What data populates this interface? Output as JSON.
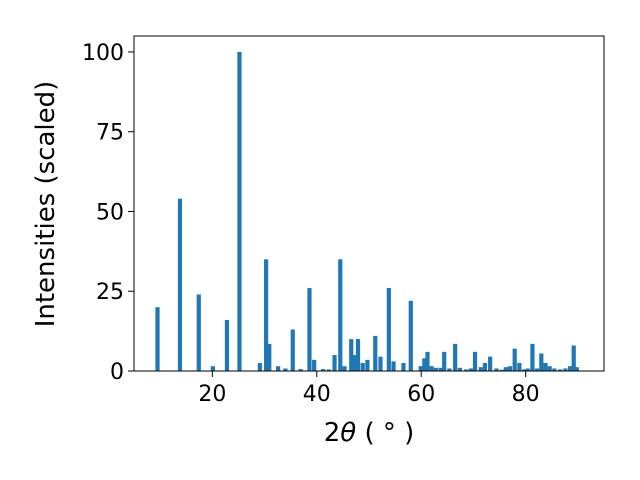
{
  "chart_data": {
    "type": "bar",
    "xlabel_prefix": "2",
    "xlabel_symbol": "θ",
    "xlabel_unit": " ( ° )",
    "ylabel": "Intensities (scaled)",
    "xlim": [
      5,
      95
    ],
    "ylim": [
      0,
      105
    ],
    "xticks": [
      20,
      40,
      60,
      80
    ],
    "yticks": [
      0,
      25,
      50,
      75,
      100
    ],
    "grid": false,
    "bar_color": "#1f77b4",
    "series": [
      {
        "x": [
          9.5,
          13.8,
          17.4,
          20.1,
          22.8,
          25.2,
          29.1,
          30.3,
          30.9,
          32.6,
          34.0,
          35.4,
          36.9,
          38.6,
          39.5,
          41.2,
          42.3,
          43.4,
          44.5,
          45.3,
          46.6,
          47.3,
          47.9,
          48.8,
          49.7,
          51.2,
          52.2,
          53.8,
          54.7,
          56.6,
          58.0,
          59.9,
          60.6,
          61.2,
          62.0,
          62.8,
          63.7,
          64.4,
          65.4,
          66.5,
          67.4,
          68.6,
          69.5,
          70.3,
          71.4,
          72.2,
          73.2,
          74.4,
          75.4,
          76.2,
          77.0,
          77.9,
          78.8,
          79.7,
          80.4,
          81.3,
          82.2,
          83.0,
          83.8,
          84.6,
          85.5,
          86.6,
          87.6,
          88.5,
          89.2,
          89.8
        ],
        "values": [
          20,
          54,
          24,
          1.5,
          16,
          100,
          2.5,
          35,
          8.5,
          1.5,
          0.8,
          13,
          0.6,
          26,
          3.5,
          0.6,
          0.5,
          5,
          35,
          1.5,
          10,
          5,
          10,
          2.5,
          3.5,
          11,
          4.5,
          26,
          3,
          2.5,
          22,
          1.5,
          4,
          6,
          1.5,
          1,
          1,
          6,
          0.8,
          8.5,
          1,
          0.5,
          0.8,
          6,
          1.2,
          2.5,
          4.5,
          0.8,
          0.4,
          1.2,
          1.5,
          7,
          2.5,
          0.5,
          0.8,
          8.5,
          0.8,
          5.5,
          2.5,
          1.5,
          0.8,
          0.5,
          0.8,
          1.5,
          8,
          1.2
        ]
      }
    ]
  }
}
